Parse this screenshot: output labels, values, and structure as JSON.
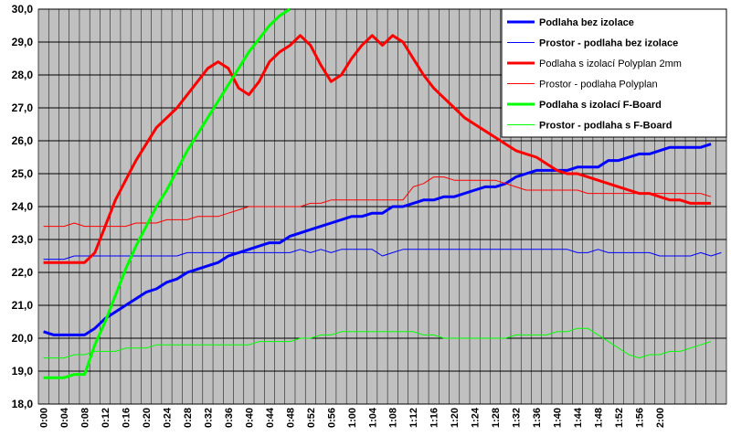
{
  "chart_data": {
    "type": "line",
    "title": "",
    "xlabel": "",
    "ylabel": "",
    "ylim": [
      18.0,
      30.0
    ],
    "ystep": 1.0,
    "yticklabels": [
      "18,0",
      "19,0",
      "20,0",
      "21,0",
      "22,0",
      "23,0",
      "24,0",
      "25,0",
      "26,0",
      "27,0",
      "28,0",
      "29,0",
      "30,0"
    ],
    "xticklabels": [
      "0:00",
      "0:04",
      "0:08",
      "0:12",
      "0:16",
      "0:20",
      "0:24",
      "0:28",
      "0:32",
      "0:36",
      "0:40",
      "0:44",
      "0:48",
      "0:52",
      "0:56",
      "1:00",
      "1:04",
      "1:08",
      "1:12",
      "1:16",
      "1:20",
      "1:24",
      "1:28",
      "1:32",
      "1:36",
      "1:40",
      "1:44",
      "1:48",
      "1:52",
      "1:56",
      "2:00"
    ],
    "x_minutes_per_step": 2,
    "grid": true,
    "plot_background": "#c0c0c0",
    "legend_position": "top-right",
    "series": [
      {
        "name": "Podlaha bez izolace",
        "color": "#0000ff",
        "width": 3,
        "bold": true,
        "values": [
          20.2,
          20.1,
          20.1,
          20.1,
          20.1,
          20.3,
          20.6,
          20.8,
          21.0,
          21.2,
          21.4,
          21.5,
          21.7,
          21.8,
          22.0,
          22.1,
          22.2,
          22.3,
          22.5,
          22.6,
          22.7,
          22.8,
          22.9,
          22.9,
          23.1,
          23.2,
          23.3,
          23.4,
          23.5,
          23.6,
          23.7,
          23.7,
          23.8,
          23.8,
          24.0,
          24.0,
          24.1,
          24.2,
          24.2,
          24.3,
          24.3,
          24.4,
          24.5,
          24.6,
          24.6,
          24.7,
          24.9,
          25.0,
          25.1,
          25.1,
          25.1,
          25.1,
          25.2,
          25.2,
          25.2,
          25.4,
          25.4,
          25.5,
          25.6,
          25.6,
          25.7,
          25.8,
          25.8,
          25.8,
          25.8,
          25.9
        ]
      },
      {
        "name": "Prostor - podlaha bez izolace",
        "color": "#0000ff",
        "width": 1,
        "bold": true,
        "values": [
          22.4,
          22.4,
          22.4,
          22.5,
          22.5,
          22.5,
          22.5,
          22.5,
          22.5,
          22.5,
          22.5,
          22.5,
          22.5,
          22.5,
          22.6,
          22.6,
          22.6,
          22.6,
          22.6,
          22.6,
          22.6,
          22.6,
          22.6,
          22.6,
          22.6,
          22.7,
          22.6,
          22.7,
          22.6,
          22.7,
          22.7,
          22.7,
          22.7,
          22.5,
          22.6,
          22.7,
          22.7,
          22.7,
          22.7,
          22.7,
          22.7,
          22.7,
          22.7,
          22.7,
          22.7,
          22.7,
          22.7,
          22.7,
          22.7,
          22.7,
          22.7,
          22.7,
          22.6,
          22.6,
          22.7,
          22.6,
          22.6,
          22.6,
          22.6,
          22.6,
          22.5,
          22.5,
          22.5,
          22.5,
          22.6,
          22.5,
          22.6
        ]
      },
      {
        "name": "Podlaha s izolací Polyplan 2mm",
        "color": "#ff0000",
        "width": 3,
        "bold": false,
        "values": [
          22.3,
          22.3,
          22.3,
          22.3,
          22.3,
          22.6,
          23.4,
          24.2,
          24.8,
          25.4,
          25.9,
          26.4,
          26.7,
          27.0,
          27.4,
          27.8,
          28.2,
          28.4,
          28.2,
          27.6,
          27.4,
          27.8,
          28.4,
          28.7,
          28.9,
          29.2,
          28.9,
          28.3,
          27.8,
          28.0,
          28.5,
          28.9,
          29.2,
          28.9,
          29.2,
          29.0,
          28.5,
          28.0,
          27.6,
          27.3,
          27.0,
          26.7,
          26.5,
          26.3,
          26.1,
          25.9,
          25.7,
          25.6,
          25.5,
          25.3,
          25.1,
          25.0,
          25.0,
          24.9,
          24.8,
          24.7,
          24.6,
          24.5,
          24.4,
          24.4,
          24.3,
          24.2,
          24.2,
          24.1,
          24.1,
          24.1
        ]
      },
      {
        "name": "Prostor - podlaha Polyplan",
        "color": "#ff0000",
        "width": 1,
        "bold": false,
        "values": [
          23.4,
          23.4,
          23.4,
          23.5,
          23.4,
          23.4,
          23.4,
          23.4,
          23.4,
          23.5,
          23.5,
          23.5,
          23.6,
          23.6,
          23.6,
          23.7,
          23.7,
          23.7,
          23.8,
          23.9,
          24.0,
          24.0,
          24.0,
          24.0,
          24.0,
          24.0,
          24.1,
          24.1,
          24.2,
          24.2,
          24.2,
          24.2,
          24.2,
          24.2,
          24.2,
          24.2,
          24.6,
          24.7,
          24.9,
          24.9,
          24.8,
          24.8,
          24.8,
          24.8,
          24.8,
          24.7,
          24.6,
          24.5,
          24.5,
          24.5,
          24.5,
          24.5,
          24.5,
          24.4,
          24.4,
          24.4,
          24.4,
          24.4,
          24.4,
          24.4,
          24.4,
          24.4,
          24.4,
          24.4,
          24.4,
          24.3
        ]
      },
      {
        "name": "Podlaha s izolací F-Board",
        "color": "#00ff00",
        "width": 3,
        "bold": true,
        "values": [
          18.8,
          18.8,
          18.8,
          18.9,
          18.9,
          19.8,
          20.5,
          21.3,
          22.1,
          22.8,
          23.4,
          24.0,
          24.5,
          25.1,
          25.7,
          26.2,
          26.7,
          27.2,
          27.7,
          28.2,
          28.7,
          29.1,
          29.5,
          29.8,
          30.0
        ]
      },
      {
        "name": "Prostor - podlaha s F-Board",
        "color": "#00ff00",
        "width": 1,
        "bold": true,
        "values": [
          19.4,
          19.4,
          19.4,
          19.5,
          19.5,
          19.6,
          19.6,
          19.6,
          19.7,
          19.7,
          19.7,
          19.8,
          19.8,
          19.8,
          19.8,
          19.8,
          19.8,
          19.8,
          19.8,
          19.8,
          19.8,
          19.9,
          19.9,
          19.9,
          19.9,
          20.0,
          20.0,
          20.1,
          20.1,
          20.2,
          20.2,
          20.2,
          20.2,
          20.2,
          20.2,
          20.2,
          20.2,
          20.1,
          20.1,
          20.0,
          20.0,
          20.0,
          20.0,
          20.0,
          20.0,
          20.0,
          20.1,
          20.1,
          20.1,
          20.1,
          20.2,
          20.2,
          20.3,
          20.3,
          20.1,
          19.9,
          19.7,
          19.5,
          19.4,
          19.5,
          19.5,
          19.6,
          19.6,
          19.7,
          19.8,
          19.9
        ]
      }
    ]
  }
}
